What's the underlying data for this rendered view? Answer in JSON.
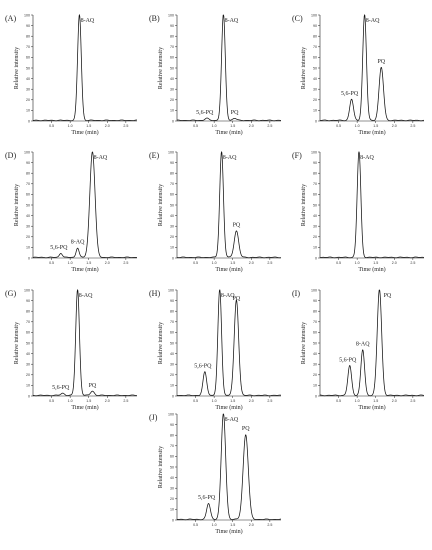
{
  "chart_data": [
    {
      "letter": "(A)",
      "type": "line",
      "xlabel": "Time (min)",
      "ylabel": "Relative intensity",
      "xlim": [
        0,
        2.8
      ],
      "ylim": [
        0,
        100
      ],
      "x_ticks": [
        "0.5",
        "1.0",
        "1.5",
        "2.0",
        "2.5"
      ],
      "y_ticks": [
        "0",
        "10",
        "20",
        "30",
        "40",
        "50",
        "60",
        "70",
        "80",
        "90",
        "100"
      ],
      "peaks": [
        {
          "name": "8-AQ",
          "rt": 1.25,
          "intensity": 100,
          "width": 0.05
        }
      ]
    },
    {
      "letter": "(B)",
      "type": "line",
      "xlabel": "Time (min)",
      "ylabel": "Relative intensity",
      "xlim": [
        0,
        2.8
      ],
      "ylim": [
        0,
        100
      ],
      "x_ticks": [
        "0.5",
        "1.0",
        "1.5",
        "2.0",
        "2.5"
      ],
      "y_ticks": [
        "0",
        "10",
        "20",
        "30",
        "40",
        "50",
        "60",
        "70",
        "80",
        "90",
        "100"
      ],
      "peaks": [
        {
          "name": "5,6-PQ",
          "rt": 0.8,
          "intensity": 2,
          "width": 0.05
        },
        {
          "name": "8-AQ",
          "rt": 1.25,
          "intensity": 100,
          "width": 0.05
        },
        {
          "name": "PQ",
          "rt": 1.55,
          "intensity": 2,
          "width": 0.05
        }
      ]
    },
    {
      "letter": "(C)",
      "type": "line",
      "xlabel": "Time (min)",
      "ylabel": "Relative intensity",
      "xlim": [
        0,
        2.8
      ],
      "ylim": [
        0,
        100
      ],
      "x_ticks": [
        "0.5",
        "1.0",
        "1.5",
        "2.0",
        "2.5"
      ],
      "y_ticks": [
        "0",
        "10",
        "20",
        "30",
        "40",
        "50",
        "60",
        "70",
        "80",
        "90",
        "100"
      ],
      "peaks": [
        {
          "name": "5,6-PQ",
          "rt": 0.85,
          "intensity": 20,
          "width": 0.05
        },
        {
          "name": "8-AQ",
          "rt": 1.2,
          "intensity": 100,
          "width": 0.05
        },
        {
          "name": "PQ",
          "rt": 1.65,
          "intensity": 50,
          "width": 0.06
        }
      ]
    },
    {
      "letter": "(D)",
      "type": "line",
      "xlabel": "Time (min)",
      "ylabel": "Relative intensity",
      "xlim": [
        0,
        2.8
      ],
      "ylim": [
        0,
        100
      ],
      "x_ticks": [
        "0.5",
        "1.0",
        "1.5",
        "2.0",
        "2.5"
      ],
      "y_ticks": [
        "0",
        "10",
        "20",
        "30",
        "40",
        "50",
        "60",
        "70",
        "80",
        "90",
        "100"
      ],
      "peaks": [
        {
          "name": "5,6-PQ",
          "rt": 0.75,
          "intensity": 4,
          "width": 0.04
        },
        {
          "name": "8-AQ",
          "rt": 1.2,
          "intensity": 9,
          "width": 0.04
        },
        {
          "name": "8-AQ",
          "rt": 1.6,
          "intensity": 100,
          "width": 0.07
        }
      ]
    },
    {
      "letter": "(E)",
      "type": "line",
      "xlabel": "Time (min)",
      "ylabel": "Relative intensity",
      "xlim": [
        0,
        2.8
      ],
      "ylim": [
        0,
        100
      ],
      "x_ticks": [
        "0.5",
        "1.0",
        "1.5",
        "2.0",
        "2.5"
      ],
      "y_ticks": [
        "0",
        "10",
        "20",
        "30",
        "40",
        "50",
        "60",
        "70",
        "80",
        "90",
        "100"
      ],
      "peaks": [
        {
          "name": "8-AQ",
          "rt": 1.2,
          "intensity": 100,
          "width": 0.05
        },
        {
          "name": "PQ",
          "rt": 1.6,
          "intensity": 25,
          "width": 0.06
        }
      ]
    },
    {
      "letter": "(F)",
      "type": "line",
      "xlabel": "Time (min)",
      "ylabel": "Relative intensity",
      "xlim": [
        0,
        2.8
      ],
      "ylim": [
        0,
        100
      ],
      "x_ticks": [
        "0.5",
        "1.0",
        "1.5",
        "2.0",
        "2.5"
      ],
      "y_ticks": [
        "0",
        "10",
        "20",
        "30",
        "40",
        "50",
        "60",
        "70",
        "80",
        "90",
        "100"
      ],
      "peaks": [
        {
          "name": "8-AQ",
          "rt": 1.05,
          "intensity": 100,
          "width": 0.05
        }
      ]
    },
    {
      "letter": "(G)",
      "type": "line",
      "xlabel": "Time (min)",
      "ylabel": "Relative intensity",
      "xlim": [
        0,
        2.8
      ],
      "ylim": [
        0,
        100
      ],
      "x_ticks": [
        "0.5",
        "1.0",
        "1.5",
        "2.0",
        "2.5"
      ],
      "y_ticks": [
        "0",
        "10",
        "20",
        "30",
        "40",
        "50",
        "60",
        "70",
        "80",
        "90",
        "100"
      ],
      "peaks": [
        {
          "name": "5,6-PQ",
          "rt": 0.8,
          "intensity": 2,
          "width": 0.05
        },
        {
          "name": "8-AQ",
          "rt": 1.2,
          "intensity": 100,
          "width": 0.05
        },
        {
          "name": "PQ",
          "rt": 1.6,
          "intensity": 4,
          "width": 0.05
        }
      ]
    },
    {
      "letter": "(H)",
      "type": "line",
      "xlabel": "Time (min)",
      "ylabel": "Relative intensity",
      "xlim": [
        0,
        2.8
      ],
      "ylim": [
        0,
        100
      ],
      "x_ticks": [
        "0.5",
        "1.0",
        "1.5",
        "2.0",
        "2.5"
      ],
      "y_ticks": [
        "0",
        "10",
        "20",
        "30",
        "40",
        "50",
        "60",
        "70",
        "80",
        "90",
        "100"
      ],
      "peaks": [
        {
          "name": "5,6-PQ",
          "rt": 0.75,
          "intensity": 22,
          "width": 0.05
        },
        {
          "name": "8-AQ",
          "rt": 1.15,
          "intensity": 100,
          "width": 0.05
        },
        {
          "name": "PQ",
          "rt": 1.6,
          "intensity": 90,
          "width": 0.06
        }
      ]
    },
    {
      "letter": "(I)",
      "type": "line",
      "xlabel": "Time (min)",
      "ylabel": "Relative intensity",
      "xlim": [
        0,
        2.8
      ],
      "ylim": [
        0,
        100
      ],
      "x_ticks": [
        "0.5",
        "1.0",
        "1.5",
        "2.0",
        "2.5"
      ],
      "y_ticks": [
        "0",
        "10",
        "20",
        "30",
        "40",
        "50",
        "60",
        "70",
        "80",
        "90",
        "100"
      ],
      "peaks": [
        {
          "name": "5,6-PQ",
          "rt": 0.8,
          "intensity": 28,
          "width": 0.05
        },
        {
          "name": "8-AQ",
          "rt": 1.15,
          "intensity": 43,
          "width": 0.05
        },
        {
          "name": "PQ",
          "rt": 1.6,
          "intensity": 100,
          "width": 0.06
        }
      ]
    },
    {
      "letter": "(J)",
      "type": "line",
      "xlabel": "Time (min)",
      "ylabel": "Relative intensity",
      "xlim": [
        0,
        2.8
      ],
      "ylim": [
        0,
        100
      ],
      "x_ticks": [
        "0.5",
        "1.0",
        "1.5",
        "2.0",
        "2.5"
      ],
      "y_ticks": [
        "0",
        "10",
        "20",
        "30",
        "40",
        "50",
        "60",
        "70",
        "80",
        "90",
        "100"
      ],
      "peaks": [
        {
          "name": "5,6-PQ",
          "rt": 0.85,
          "intensity": 15,
          "width": 0.05
        },
        {
          "name": "8-AQ",
          "rt": 1.25,
          "intensity": 100,
          "width": 0.06
        },
        {
          "name": "PQ",
          "rt": 1.85,
          "intensity": 80,
          "width": 0.07
        }
      ]
    }
  ]
}
